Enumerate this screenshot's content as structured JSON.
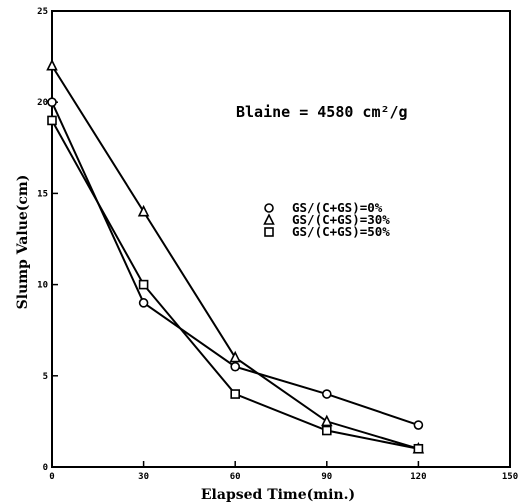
{
  "chart_data": {
    "type": "line",
    "xlabel": "Elapsed Time(min.)",
    "ylabel": "Slump Value(cm)",
    "xlim": [
      0,
      150
    ],
    "ylim": [
      0,
      25
    ],
    "xticks": [
      "0",
      "30",
      "60",
      "90",
      "120",
      "150"
    ],
    "yticks": [
      "0",
      "5",
      "10",
      "15",
      "20",
      "25"
    ],
    "x": [
      0,
      30,
      60,
      90,
      120
    ],
    "grid": false,
    "legend_position": "right",
    "annotation": "Blaine = 4580 cm²/g",
    "series": [
      {
        "name": "GS/(C+GS)=0%",
        "marker": "circle",
        "values": [
          20,
          9,
          5.5,
          4,
          2.3
        ]
      },
      {
        "name": "GS/(C+GS)=30%",
        "marker": "triangle",
        "values": [
          22,
          14,
          6,
          2.5,
          1
        ]
      },
      {
        "name": "GS/(C+GS)=50%",
        "marker": "square",
        "values": [
          19,
          10,
          4,
          2,
          1
        ]
      }
    ]
  }
}
